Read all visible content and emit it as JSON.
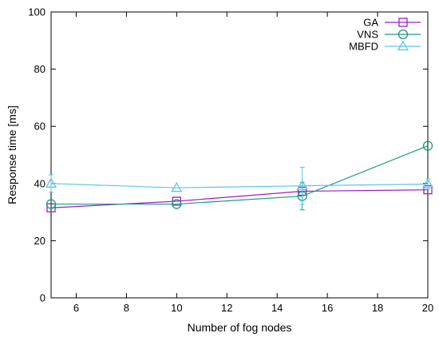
{
  "chart_data": {
    "type": "line",
    "xlabel": "Number of fog nodes",
    "ylabel": "Response time [ms]",
    "xlim": [
      5,
      20
    ],
    "ylim": [
      0,
      100
    ],
    "xticks": [
      6,
      8,
      10,
      12,
      14,
      16,
      18,
      20
    ],
    "yticks": [
      0,
      20,
      40,
      60,
      80,
      100
    ],
    "grid": false,
    "legend_position": "top-right",
    "series": [
      {
        "name": "GA",
        "color": "#9a1fc6",
        "marker": "square",
        "x": [
          5,
          10,
          15,
          20
        ],
        "y": [
          31.5,
          33.8,
          37.3,
          37.8
        ],
        "error": [
          null,
          null,
          null,
          null
        ]
      },
      {
        "name": "VNS",
        "color": "#1a9a84",
        "marker": "circle",
        "x": [
          5,
          10,
          15,
          20
        ],
        "y": [
          32.8,
          32.8,
          35.6,
          53.2
        ],
        "error": [
          null,
          null,
          4.8,
          null
        ]
      },
      {
        "name": "MBFD",
        "color": "#5ec5e4",
        "marker": "triangle",
        "x": [
          5,
          10,
          15,
          20
        ],
        "y": [
          40.0,
          38.5,
          39.2,
          39.8
        ],
        "error": [
          3.0,
          null,
          6.5,
          1.8
        ]
      }
    ]
  }
}
